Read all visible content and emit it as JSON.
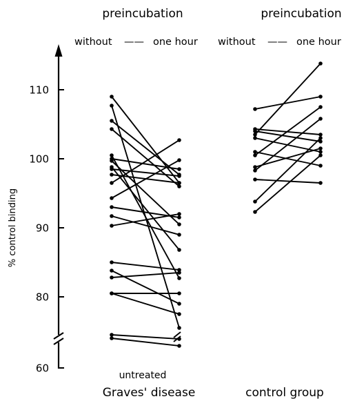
{
  "chart_data": {
    "type": "line",
    "ylabel": "% control binding",
    "y_ticks": [
      "110",
      "100",
      "90",
      "80",
      "60"
    ],
    "y_break_between": [
      60,
      75
    ],
    "x_categories": [
      "without",
      "one hour"
    ],
    "groups": [
      {
        "header": "preincubation",
        "left_label": "without",
        "dash": "——",
        "right_label": "one hour",
        "note": "untreated",
        "name": "Graves' disease",
        "pairs": [
          [
            109.0,
            96.5
          ],
          [
            107.7,
            75.5
          ],
          [
            105.5,
            97.7
          ],
          [
            104.3,
            96.0
          ],
          [
            100.5,
            73.0
          ],
          [
            100.0,
            98.5
          ],
          [
            99.7,
            90.5
          ],
          [
            98.8,
            86.8
          ],
          [
            98.5,
            97.5
          ],
          [
            97.7,
            96.5
          ],
          [
            96.5,
            102.7
          ],
          [
            94.3,
            99.8
          ],
          [
            93.0,
            91.5
          ],
          [
            91.7,
            89.0
          ],
          [
            90.3,
            92.0
          ],
          [
            85.0,
            74.2
          ],
          [
            83.8,
            79.0
          ],
          [
            82.8,
            83.5
          ],
          [
            80.5,
            80.5
          ],
          [
            80.5,
            77.5
          ],
          [
            64.8,
            64.2
          ],
          [
            64.3,
            63.2
          ]
        ]
      },
      {
        "header": "preincubation",
        "left_label": "without",
        "dash": "——",
        "right_label": "one hour",
        "note": "",
        "name": "control group",
        "pairs": [
          [
            107.2,
            109.0
          ],
          [
            104.3,
            103.5
          ],
          [
            104.0,
            102.5
          ],
          [
            103.5,
            113.8
          ],
          [
            103.0,
            101.0
          ],
          [
            101.0,
            99.0
          ],
          [
            100.5,
            107.5
          ],
          [
            98.8,
            101.5
          ],
          [
            98.3,
            105.8
          ],
          [
            97.0,
            96.5
          ],
          [
            93.8,
            103.0
          ],
          [
            92.3,
            100.5
          ]
        ]
      }
    ]
  }
}
